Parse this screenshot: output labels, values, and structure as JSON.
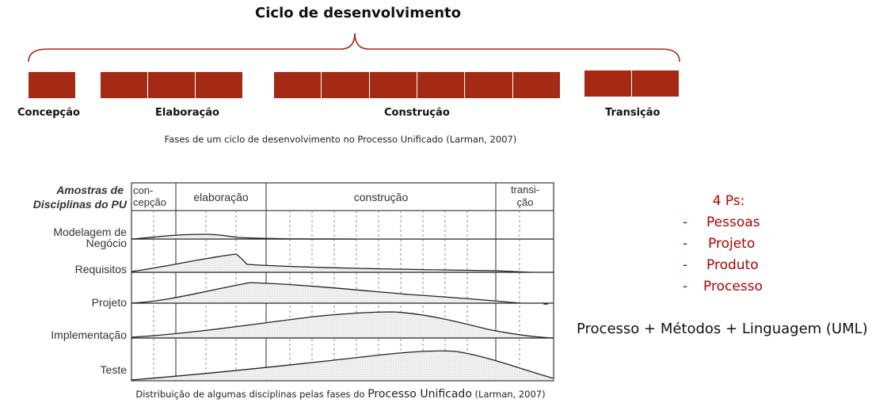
{
  "title": "Ciclo de desenvolvimento",
  "phases": [
    {
      "label": "Concepção",
      "iterations": 1
    },
    {
      "label": "Elaboração",
      "iterations": 3
    },
    {
      "label": "Construção",
      "iterations": 6
    },
    {
      "label": "Transição",
      "iterations": 2
    }
  ],
  "caption_top": "Fases de um ciclo de desenvolvimento no Processo Unificado (Larman, 2007)",
  "chart": {
    "header_label_line1": "Amostras de",
    "header_label_line2": "Disciplinas do PU",
    "phase_headers": [
      {
        "line1": "con-",
        "line2": "cepção"
      },
      {
        "line1": "elaboração",
        "line2": ""
      },
      {
        "line1": "construção",
        "line2": ""
      },
      {
        "line1": "transi-",
        "line2": "ção"
      }
    ],
    "disciplines": [
      {
        "line1": "Modelagem de",
        "line2": "Negócio"
      },
      {
        "line1": "Requisitos",
        "line2": ""
      },
      {
        "line1": "Projeto",
        "line2": ""
      },
      {
        "line1": "Implementação",
        "line2": ""
      },
      {
        "line1": "Teste",
        "line2": ""
      }
    ]
  },
  "caption_bottom_pre": "Distribuição de algumas disciplinas pelas fases do ",
  "caption_bottom_emph": "Processo Unificado",
  "caption_bottom_post": " (Larman, 2007)",
  "ps": {
    "heading": "4 Ps:",
    "items": [
      "Pessoas",
      "Projeto",
      "Produto",
      "Processo"
    ],
    "dash": "-"
  },
  "formula": "Processo + Métodos + Linguagem (UML)",
  "colors": {
    "block": "#a52a16",
    "accent_red": "#c00000"
  }
}
